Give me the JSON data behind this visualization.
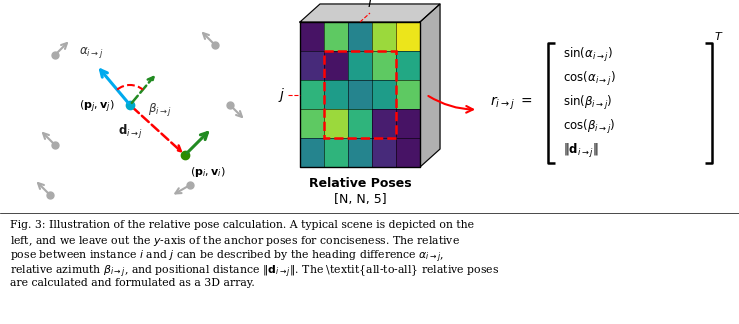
{
  "fig_width": 7.39,
  "fig_height": 3.24,
  "dpi": 100,
  "bg_color": "#ffffff",
  "matrix_data": [
    [
      0.05,
      0.75,
      0.45,
      0.85,
      0.97
    ],
    [
      0.12,
      0.05,
      0.55,
      0.75,
      0.6
    ],
    [
      0.65,
      0.55,
      0.45,
      0.55,
      0.75
    ],
    [
      0.75,
      0.85,
      0.65,
      0.08,
      0.05
    ],
    [
      0.45,
      0.65,
      0.45,
      0.12,
      0.05
    ]
  ]
}
